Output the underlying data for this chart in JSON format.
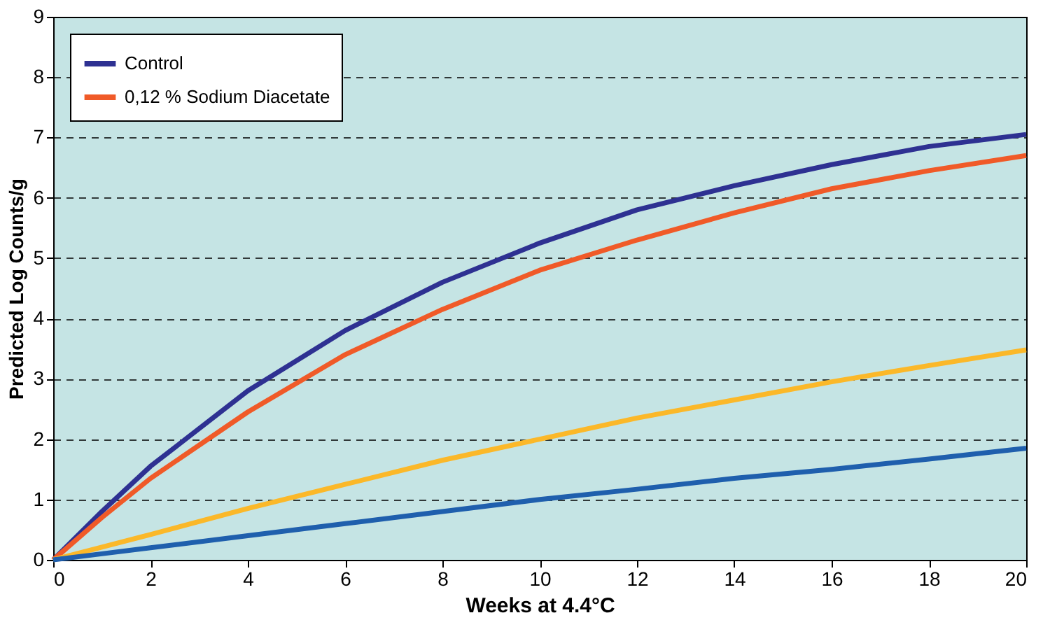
{
  "chart_data": {
    "type": "line",
    "xlabel": "Weeks at 4.4°C",
    "ylabel": "Predicted Log Counts/g",
    "x": [
      0,
      1,
      2,
      4,
      6,
      8,
      10,
      12,
      14,
      16,
      18,
      20
    ],
    "series": [
      {
        "name": "Control",
        "color": "#2e3192",
        "values": [
          0,
          0.8,
          1.55,
          2.8,
          3.8,
          4.6,
          5.25,
          5.8,
          6.2,
          6.55,
          6.85,
          7.05
        ]
      },
      {
        "name": "0,12 % Sodium Diacetate",
        "color": "#f05a28",
        "values": [
          0,
          0.7,
          1.35,
          2.45,
          3.4,
          4.15,
          4.8,
          5.3,
          5.75,
          6.15,
          6.45,
          6.7
        ]
      },
      {
        "color": "#fbb829",
        "values": [
          0,
          0.21,
          0.42,
          0.85,
          1.25,
          1.65,
          2.0,
          2.35,
          2.65,
          2.95,
          3.22,
          3.48
        ]
      },
      {
        "color": "#1f5fad",
        "values": [
          0,
          0.1,
          0.2,
          0.4,
          0.6,
          0.8,
          1.0,
          1.17,
          1.35,
          1.5,
          1.67,
          1.85
        ]
      }
    ],
    "xlim": [
      0,
      20
    ],
    "xticks": [
      0,
      2,
      4,
      6,
      8,
      10,
      12,
      14,
      16,
      18,
      20
    ],
    "ylim": [
      0,
      9
    ],
    "yticks": [
      0,
      1,
      2,
      3,
      4,
      5,
      6,
      7,
      8,
      9
    ],
    "grid": "y",
    "legend": "top left",
    "line_style": "solid",
    "marker": "none"
  }
}
